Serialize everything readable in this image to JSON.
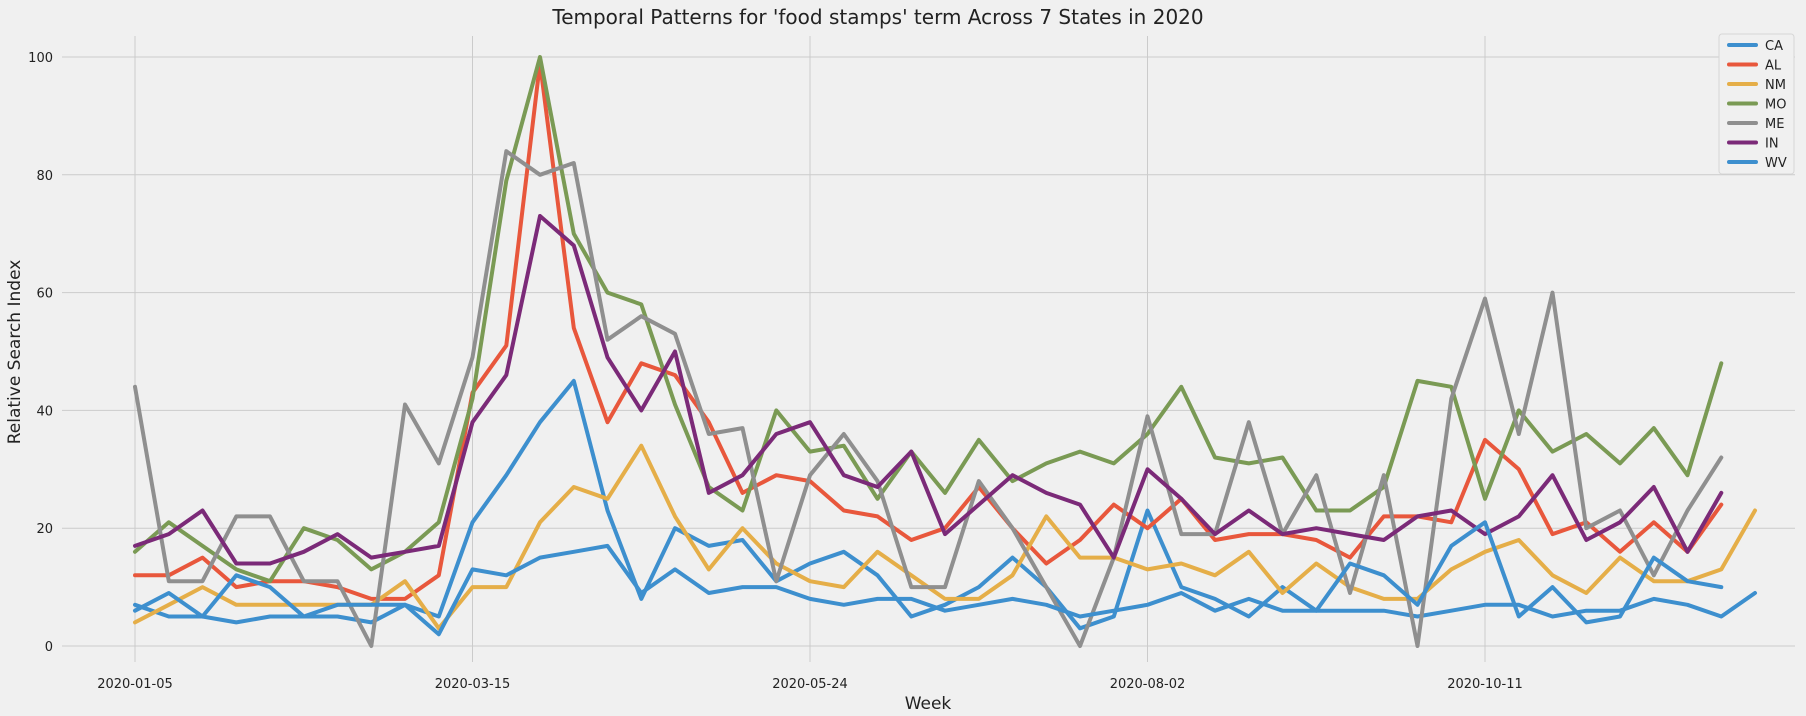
{
  "chart_data": {
    "type": "line",
    "title": "Temporal Patterns for 'food stamps' term Across 7 States in 2020",
    "xlabel": "Week",
    "ylabel": "Relative Search Index",
    "ylim": [
      0,
      100
    ],
    "yticks": [
      0,
      20,
      40,
      60,
      80,
      100
    ],
    "x_start": "2020-01-05",
    "x_step_days": 7,
    "xticks": [
      {
        "label": "2020-01-05",
        "week_index": 0
      },
      {
        "label": "2020-03-15",
        "week_index": 10
      },
      {
        "label": "2020-05-24",
        "week_index": 20
      },
      {
        "label": "2020-08-02",
        "week_index": 30
      },
      {
        "label": "2020-10-11",
        "week_index": 40
      }
    ],
    "grid": true,
    "legend_position": "top-right",
    "series": [
      {
        "name": "CA",
        "color": "#3d8fce",
        "values": [
          7,
          5,
          5,
          4,
          5,
          5,
          5,
          4,
          7,
          5,
          21,
          29,
          38,
          45,
          23,
          8,
          20,
          17,
          18,
          11,
          14,
          16,
          12,
          5,
          7,
          10,
          15,
          10,
          3,
          5,
          23,
          10,
          8,
          5,
          10,
          6,
          6,
          6,
          5,
          6,
          7,
          7,
          5,
          6,
          6,
          8,
          7,
          5,
          9,
          null
        ]
      },
      {
        "name": "AL",
        "color": "#e8573c",
        "values": [
          12,
          12,
          15,
          10,
          11,
          11,
          10,
          8,
          8,
          12,
          43,
          51,
          99,
          54,
          38,
          48,
          46,
          38,
          26,
          29,
          28,
          23,
          22,
          18,
          20,
          27,
          20,
          14,
          18,
          24,
          20,
          25,
          18,
          19,
          19,
          18,
          15,
          22,
          22,
          21,
          35,
          30,
          19,
          21,
          16,
          21,
          16,
          24,
          null,
          null
        ]
      },
      {
        "name": "NM",
        "color": "#e5ae48",
        "values": [
          4,
          7,
          10,
          7,
          7,
          7,
          7,
          7,
          11,
          3,
          10,
          10,
          21,
          27,
          25,
          34,
          22,
          13,
          20,
          14,
          11,
          10,
          16,
          12,
          8,
          8,
          12,
          22,
          15,
          15,
          13,
          14,
          12,
          16,
          9,
          14,
          10,
          8,
          8,
          13,
          16,
          18,
          12,
          9,
          15,
          11,
          11,
          13,
          23,
          null
        ]
      },
      {
        "name": "MO",
        "color": "#7a9a54",
        "values": [
          16,
          21,
          17,
          13,
          11,
          20,
          18,
          13,
          16,
          21,
          42,
          79,
          100,
          70,
          60,
          58,
          41,
          27,
          23,
          40,
          33,
          34,
          25,
          33,
          26,
          35,
          28,
          31,
          33,
          31,
          36,
          44,
          32,
          31,
          32,
          23,
          23,
          27,
          45,
          44,
          25,
          40,
          33,
          36,
          31,
          37,
          29,
          48,
          null,
          null
        ]
      },
      {
        "name": "ME",
        "color": "#8f8f8f",
        "values": [
          44,
          11,
          11,
          22,
          22,
          11,
          11,
          0,
          41,
          31,
          49,
          84,
          80,
          82,
          52,
          56,
          53,
          36,
          37,
          11,
          29,
          36,
          28,
          10,
          10,
          28,
          20,
          10,
          0,
          15,
          39,
          19,
          19,
          38,
          19,
          29,
          9,
          29,
          0,
          42,
          59,
          36,
          60,
          20,
          23,
          12,
          23,
          32,
          null,
          null
        ]
      },
      {
        "name": "IN",
        "color": "#7b2a78",
        "values": [
          17,
          19,
          23,
          14,
          14,
          16,
          19,
          15,
          16,
          17,
          38,
          46,
          73,
          68,
          49,
          40,
          50,
          26,
          29,
          36,
          38,
          29,
          27,
          33,
          19,
          24,
          29,
          26,
          24,
          15,
          30,
          25,
          19,
          23,
          19,
          20,
          19,
          18,
          22,
          23,
          19,
          22,
          29,
          18,
          21,
          27,
          16,
          26,
          null,
          null
        ]
      },
      {
        "name": "WV",
        "color": "#3d8fce",
        "values": [
          6,
          9,
          5,
          12,
          10,
          5,
          7,
          7,
          7,
          2,
          13,
          12,
          15,
          16,
          17,
          9,
          13,
          9,
          10,
          10,
          8,
          7,
          8,
          8,
          6,
          7,
          8,
          7,
          5,
          6,
          7,
          9,
          6,
          8,
          6,
          6,
          14,
          12,
          7,
          17,
          21,
          5,
          10,
          4,
          5,
          15,
          11,
          10,
          null,
          null
        ]
      }
    ]
  }
}
